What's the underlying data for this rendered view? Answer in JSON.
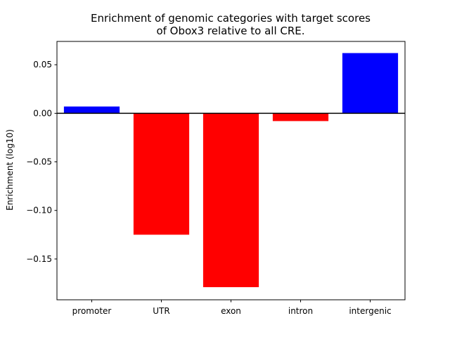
{
  "chart_data": {
    "type": "bar",
    "title": [
      "Enrichment of genomic categories with target scores",
      "of Obox3 relative to all CRE."
    ],
    "xlabel": "",
    "ylabel": "Enrichment (log10)",
    "categories": [
      "promoter",
      "UTR",
      "exon",
      "intron",
      "intergenic"
    ],
    "values": [
      0.007,
      -0.125,
      -0.179,
      -0.008,
      0.062
    ],
    "bar_colors": [
      "#0000ff",
      "#ff0000",
      "#ff0000",
      "#ff0000",
      "#0000ff"
    ],
    "ylim": [
      -0.192,
      0.074
    ],
    "yticks": [
      0.05,
      0.0,
      -0.05,
      -0.1,
      -0.15
    ],
    "ytick_labels": [
      "0.05",
      "0.00",
      "−0.05",
      "−0.10",
      "−0.15"
    ],
    "zero_line": true,
    "grid": false,
    "legend": null
  }
}
